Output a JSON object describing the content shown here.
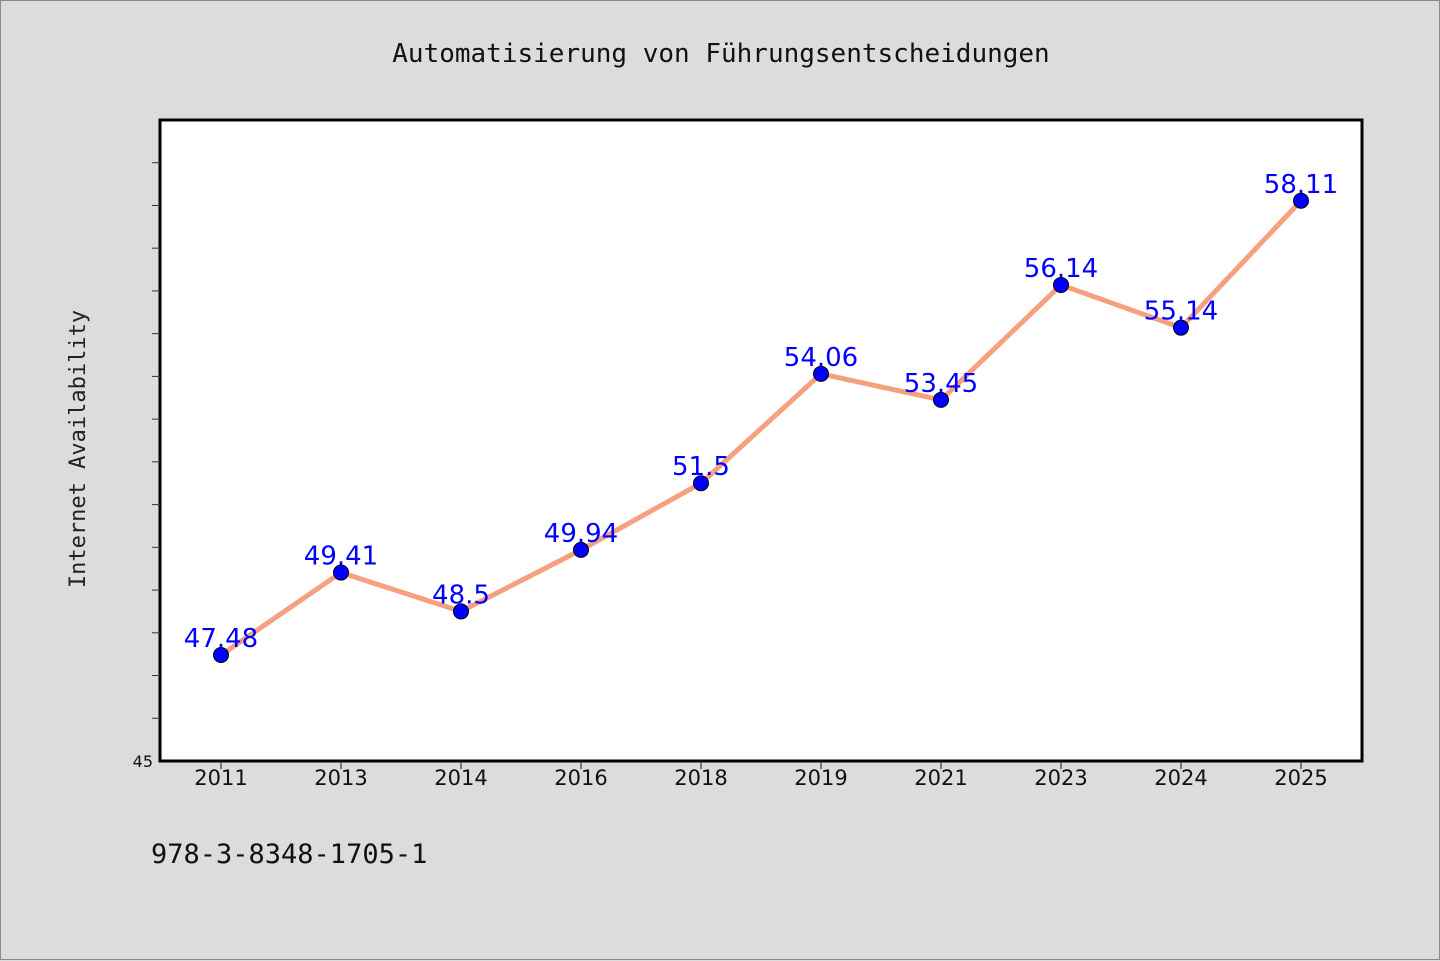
{
  "chart_data": {
    "type": "line",
    "title": "Automatisierung von Führungsentscheidungen",
    "ylabel": "Internet Availability",
    "xlabel": "",
    "categories": [
      "2011",
      "2013",
      "2014",
      "2016",
      "2018",
      "2019",
      "2021",
      "2023",
      "2024",
      "2025"
    ],
    "series": [
      {
        "values": [
          47.48,
          49.41,
          48.5,
          49.94,
          51.5,
          54.06,
          53.45,
          56.14,
          55.14,
          58.11
        ],
        "labels": [
          "47.48",
          "49.41",
          "48.5",
          "49.94",
          "51.5",
          "54.06",
          "53.45",
          "56.14",
          "55.14",
          "58.11"
        ],
        "line_color": "#f5a07f",
        "marker_color": "#0000ff"
      }
    ],
    "ylim": [
      45,
      60
    ],
    "y_min_label": "45",
    "grid": false,
    "legend": "none"
  },
  "footer": {
    "isbn": "978-3-8348-1705-1"
  },
  "colors": {
    "background": "#dcdcdc",
    "plot_background": "#ffffff",
    "data_label": "#0000ff"
  }
}
